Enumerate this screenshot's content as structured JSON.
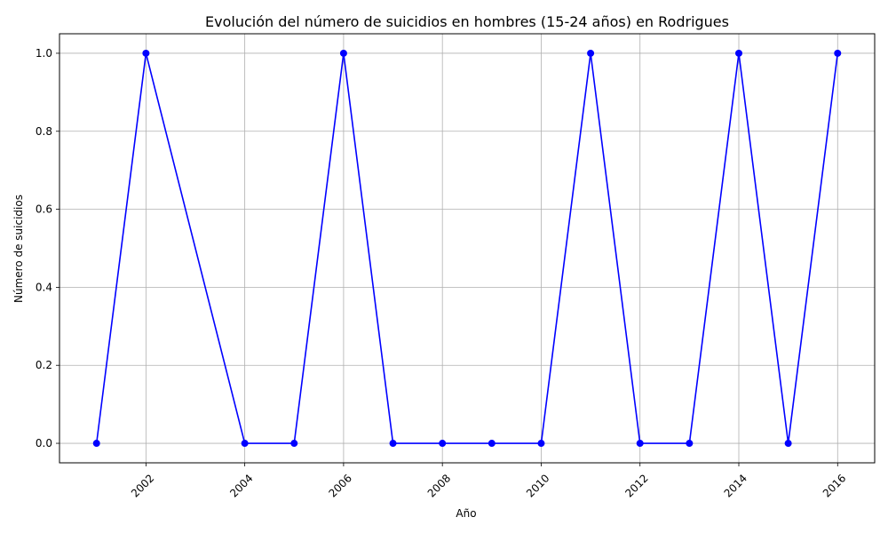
{
  "chart_data": {
    "type": "line",
    "title": "Evolución del número de suicidios en hombres (15-24 años) en Rodrigues",
    "xlabel": "Año",
    "ylabel": "Número de suicidios",
    "x": [
      2001,
      2002,
      2004,
      2005,
      2006,
      2007,
      2008,
      2009,
      2010,
      2011,
      2012,
      2013,
      2014,
      2015,
      2016
    ],
    "series": [
      {
        "values": [
          0,
          1,
          0,
          0,
          1,
          0,
          0,
          0,
          0,
          1,
          0,
          0,
          1,
          0,
          1
        ],
        "color": "#0000ff"
      }
    ],
    "xlim": [
      2000.25,
      2016.75
    ],
    "ylim": [
      -0.05,
      1.05
    ],
    "xticks": [
      2002,
      2004,
      2006,
      2008,
      2010,
      2012,
      2014,
      2016
    ],
    "xtick_labels": [
      "2002",
      "2004",
      "2006",
      "2008",
      "2010",
      "2012",
      "2014",
      "2016"
    ],
    "yticks": [
      0.0,
      0.2,
      0.4,
      0.6,
      0.8,
      1.0
    ],
    "ytick_labels": [
      "0.0",
      "0.2",
      "0.4",
      "0.6",
      "0.8",
      "1.0"
    ],
    "grid": true,
    "marker": "circle",
    "xtick_rotation": 45
  }
}
